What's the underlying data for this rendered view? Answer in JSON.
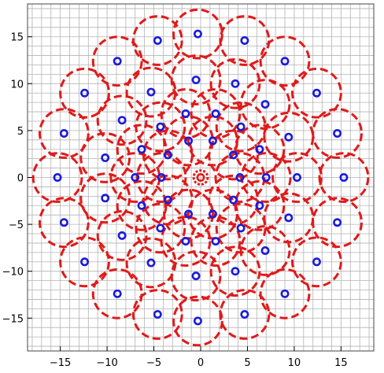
{
  "chart_data": {
    "type": "scatter",
    "title": "",
    "xlabel": "",
    "ylabel": "",
    "xlim": [
      -18.5,
      18.5
    ],
    "ylim": [
      -18.5,
      18.5
    ],
    "grid": true,
    "grid_step": 1,
    "xticks": [
      -15,
      -10,
      -5,
      0,
      5,
      10,
      15
    ],
    "yticks": [
      -15,
      -10,
      -5,
      0,
      5,
      10,
      15
    ],
    "xtick_labels": [
      "−15",
      "−10",
      "−5",
      "0",
      "5",
      "10",
      "15"
    ],
    "ytick_labels": [
      "−15",
      "−10",
      "−5",
      "0",
      "5",
      "10",
      "15"
    ],
    "colors": {
      "grid": "#b3b3b3",
      "center_marker": "#1a1adb",
      "disk_outline": "#e01a1a",
      "axis": "#444444"
    },
    "disk_radius": 2.6,
    "center_marker_radius": 0.35,
    "origin_disk_radius": 0.75,
    "series": [
      {
        "values": [
          [
            0,
            0
          ],
          [
            -1.3,
            3.9
          ],
          [
            1.3,
            3.9
          ],
          [
            -1.3,
            -3.9
          ],
          [
            1.3,
            -3.9
          ],
          [
            -4.2,
            0
          ],
          [
            4.2,
            0
          ],
          [
            -3.5,
            2.4
          ],
          [
            3.5,
            2.4
          ],
          [
            -3.5,
            -2.4
          ],
          [
            3.5,
            -2.4
          ],
          [
            -1.6,
            6.8
          ],
          [
            1.6,
            6.8
          ],
          [
            -1.6,
            -6.8
          ],
          [
            1.6,
            -6.8
          ],
          [
            -4.3,
            5.4
          ],
          [
            4.3,
            5.4
          ],
          [
            -4.3,
            -5.4
          ],
          [
            4.3,
            -5.4
          ],
          [
            -6.3,
            3.0
          ],
          [
            6.3,
            3.0
          ],
          [
            -6.3,
            -3.0
          ],
          [
            6.3,
            -3.0
          ],
          [
            -7.0,
            0
          ],
          [
            7.0,
            0
          ],
          [
            -0.5,
            10.4
          ],
          [
            3.7,
            10.0
          ],
          [
            -5.3,
            9.1
          ],
          [
            6.9,
            7.8
          ],
          [
            -8.4,
            6.1
          ],
          [
            9.4,
            4.3
          ],
          [
            -10.2,
            2.1
          ],
          [
            10.3,
            0
          ],
          [
            -10.2,
            -2.2
          ],
          [
            9.4,
            -4.3
          ],
          [
            -8.4,
            -6.2
          ],
          [
            6.9,
            -7.8
          ],
          [
            -5.3,
            -9.1
          ],
          [
            3.7,
            -10.0
          ],
          [
            -0.5,
            -10.5
          ],
          [
            -0.3,
            15.3
          ],
          [
            4.7,
            14.6
          ],
          [
            -4.6,
            14.6
          ],
          [
            9.0,
            12.4
          ],
          [
            -8.9,
            12.4
          ],
          [
            12.4,
            9.0
          ],
          [
            -12.4,
            9.0
          ],
          [
            14.6,
            4.7
          ],
          [
            -14.6,
            4.7
          ],
          [
            15.3,
            0
          ],
          [
            -15.3,
            0
          ],
          [
            14.6,
            -4.8
          ],
          [
            -14.6,
            -4.8
          ],
          [
            12.4,
            -9.0
          ],
          [
            -12.4,
            -9.0
          ],
          [
            9.0,
            -12.4
          ],
          [
            -8.9,
            -12.4
          ],
          [
            4.7,
            -14.6
          ],
          [
            -4.6,
            -14.6
          ],
          [
            -0.3,
            -15.3
          ]
        ]
      }
    ]
  }
}
